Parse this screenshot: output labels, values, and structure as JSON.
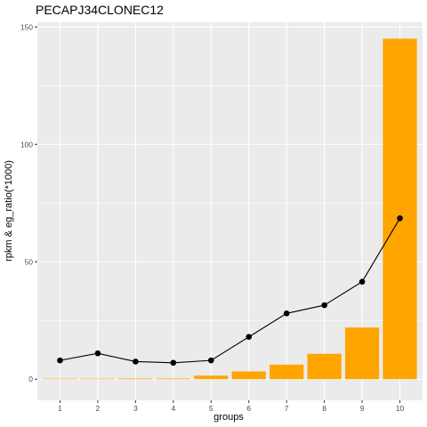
{
  "chart_data": {
    "type": "bar",
    "title": "PECAPJ34CLONEC12",
    "xlabel": "groups",
    "ylabel": "rpkm & eg_ratio(*1000)",
    "categories": [
      "1",
      "2",
      "3",
      "4",
      "5",
      "6",
      "7",
      "8",
      "9",
      "10"
    ],
    "series": [
      {
        "type": "bar",
        "values": [
          0.0,
          0.0,
          0.3,
          0.3,
          1.5,
          3.3,
          6.2,
          10.8,
          22.0,
          145.0
        ],
        "color": "#FFA500"
      },
      {
        "type": "line",
        "values": [
          8.0,
          11.0,
          7.5,
          7.0,
          8.0,
          18.0,
          28.0,
          31.5,
          41.5,
          68.5
        ],
        "color": "#000000"
      }
    ],
    "ylim": [
      -9,
      152
    ],
    "yticks": [
      0,
      50,
      100,
      150
    ],
    "grid": true,
    "panel_background": "#EBEBEB",
    "grid_color": "#FFFFFF"
  }
}
